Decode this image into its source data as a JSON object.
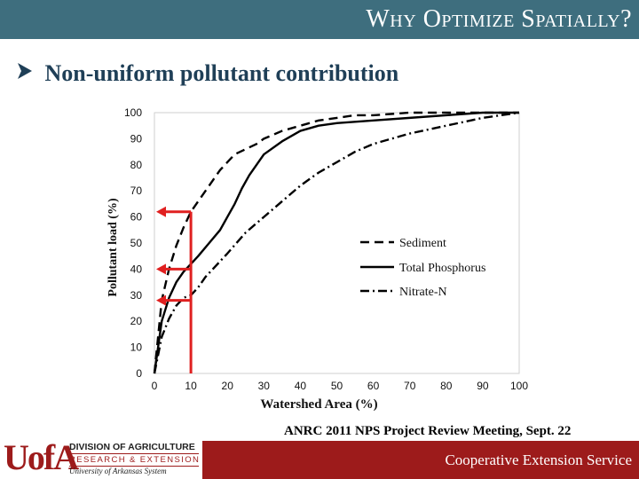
{
  "slide": {
    "title": "Why Optimize Spatially?",
    "bullet_icon": "arrow-bullet-icon",
    "bullet": "Non-uniform pollutant contribution",
    "meeting": "ANRC 2011 NPS Project Review Meeting, Sept. 22",
    "footer": "Cooperative Extension Service",
    "colors": {
      "title_bar": "#3e6e7e",
      "footer_bar": "#9d1b1b",
      "highlight": "#e02020"
    }
  },
  "logo": {
    "mark": "UofA",
    "line1": "DIVISION OF AGRICULTURE",
    "line2": "RESEARCH & EXTENSION",
    "line3": "University of Arkansas System"
  },
  "chart_data": {
    "type": "line",
    "title": "",
    "xlabel": "Watershed Area (%)",
    "ylabel": "Pollutant load (%)",
    "xlim": [
      0,
      100
    ],
    "ylim": [
      0,
      100
    ],
    "xticks": [
      0,
      10,
      20,
      30,
      40,
      50,
      60,
      70,
      80,
      90,
      100
    ],
    "yticks": [
      0,
      10,
      20,
      30,
      40,
      50,
      60,
      70,
      80,
      90,
      100
    ],
    "grid": false,
    "legend_position": "right-center",
    "series": [
      {
        "name": "Sediment",
        "style": "dashed",
        "x": [
          0,
          2,
          4,
          6,
          8,
          10,
          12,
          14,
          16,
          18,
          20,
          22,
          25,
          28,
          30,
          35,
          40,
          45,
          50,
          55,
          60,
          70,
          80,
          90,
          100
        ],
        "y": [
          0,
          28,
          40,
          49,
          56,
          62,
          66,
          70,
          74,
          78,
          81,
          84,
          86,
          88,
          90,
          93,
          95,
          97,
          98,
          99,
          99,
          100,
          100,
          100,
          100
        ]
      },
      {
        "name": "Total Phosphorus",
        "style": "solid",
        "x": [
          0,
          2,
          4,
          6,
          8,
          10,
          12,
          15,
          18,
          20,
          22,
          24,
          26,
          28,
          30,
          35,
          40,
          45,
          50,
          60,
          70,
          80,
          90,
          100
        ],
        "y": [
          0,
          20,
          29,
          35,
          39,
          42,
          45,
          50,
          55,
          60,
          65,
          71,
          76,
          80,
          84,
          89,
          93,
          95,
          96,
          97,
          98,
          99,
          100,
          100
        ]
      },
      {
        "name": "Nitrate-N",
        "style": "dashdot",
        "x": [
          0,
          2,
          4,
          6,
          8,
          10,
          12,
          14,
          16,
          18,
          20,
          25,
          30,
          35,
          40,
          45,
          50,
          55,
          60,
          65,
          70,
          80,
          90,
          100
        ],
        "y": [
          0,
          14,
          21,
          26,
          29,
          30,
          33,
          37,
          40,
          43,
          46,
          54,
          60,
          66,
          72,
          77,
          81,
          85,
          88,
          90,
          92,
          95,
          98,
          100
        ]
      }
    ],
    "annotations": [
      {
        "type": "vertical-line",
        "x": 10
      },
      {
        "type": "arrow",
        "from_x": 10,
        "y": 62
      },
      {
        "type": "arrow",
        "from_x": 10,
        "y": 40
      },
      {
        "type": "arrow",
        "from_x": 10,
        "y": 28
      }
    ]
  }
}
